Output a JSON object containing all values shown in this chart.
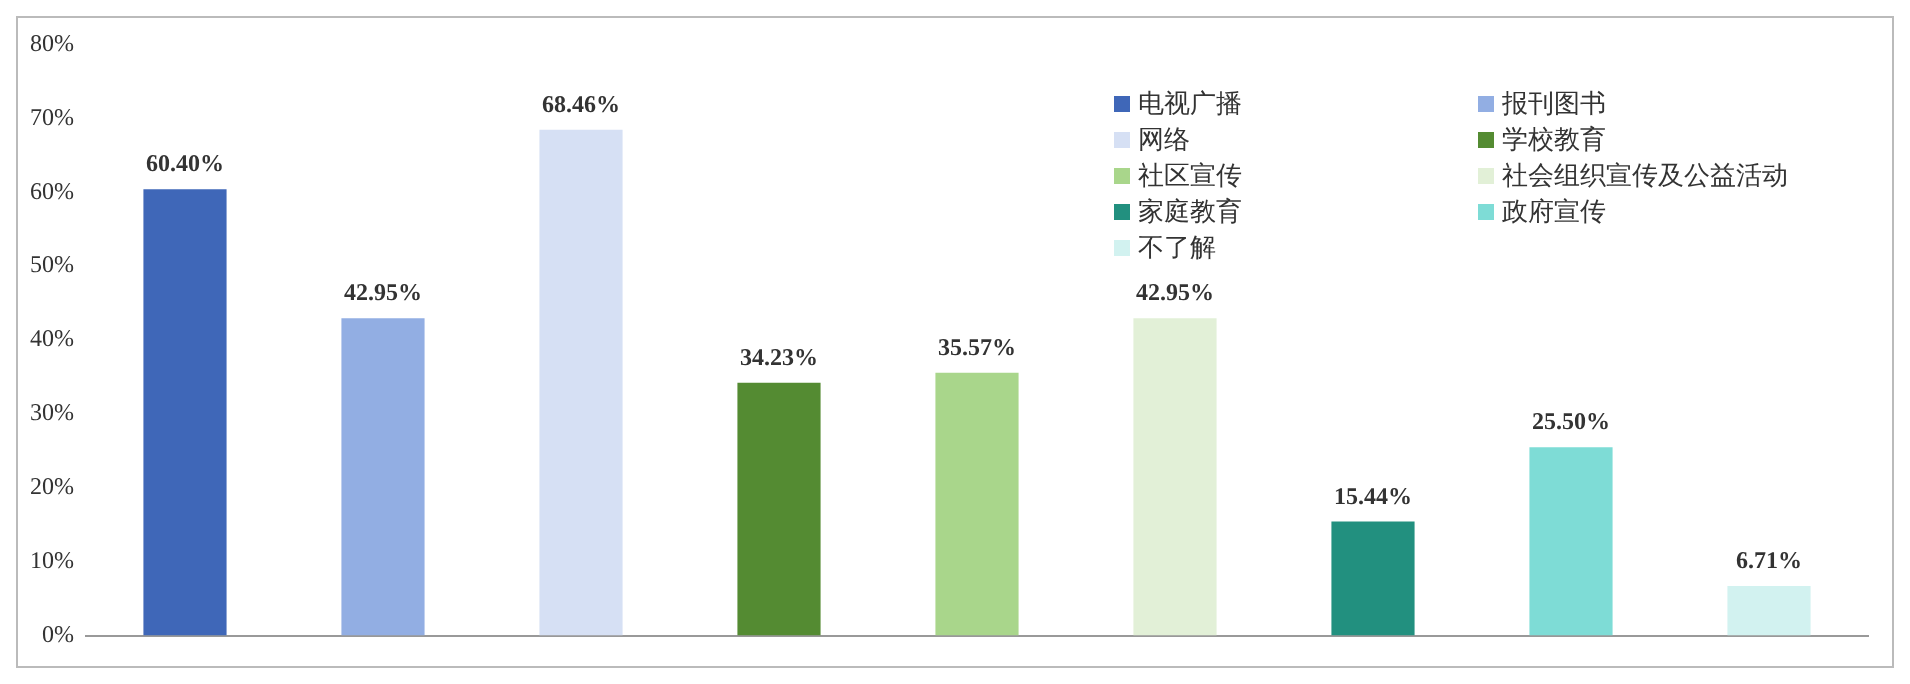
{
  "chart_data": {
    "type": "bar",
    "categories": [
      null,
      null,
      null,
      null,
      null,
      null,
      null,
      null,
      null
    ],
    "series": [
      {
        "name": "电视广播",
        "color": "#3f67b8",
        "values": [
          60.4,
          null,
          null,
          null,
          null,
          null,
          null,
          null,
          null
        ],
        "value_labels": [
          "60.40%",
          null,
          null,
          null,
          null,
          null,
          null,
          null,
          null
        ]
      },
      {
        "name": "报刊图书",
        "color": "#92aee3",
        "values": [
          null,
          42.95,
          null,
          null,
          null,
          null,
          null,
          null,
          null
        ],
        "value_labels": [
          null,
          "42.95%",
          null,
          null,
          null,
          null,
          null,
          null,
          null
        ]
      },
      {
        "name": "网络",
        "color": "#d6e0f4",
        "values": [
          null,
          null,
          68.46,
          null,
          null,
          null,
          null,
          null,
          null
        ],
        "value_labels": [
          null,
          null,
          "68.46%",
          null,
          null,
          null,
          null,
          null,
          null
        ]
      },
      {
        "name": "学校教育",
        "color": "#548b32",
        "values": [
          null,
          null,
          null,
          34.23,
          null,
          null,
          null,
          null,
          null
        ],
        "value_labels": [
          null,
          null,
          null,
          "34.23%",
          null,
          null,
          null,
          null,
          null
        ]
      },
      {
        "name": "社区宣传",
        "color": "#a9d68b",
        "values": [
          null,
          null,
          null,
          null,
          35.57,
          null,
          null,
          null,
          null
        ],
        "value_labels": [
          null,
          null,
          null,
          null,
          "35.57%",
          null,
          null,
          null,
          null
        ]
      },
      {
        "name": "社会组织宣传及公益活动",
        "color": "#e2f0d7",
        "values": [
          null,
          null,
          null,
          null,
          null,
          42.95,
          null,
          null,
          null
        ],
        "value_labels": [
          null,
          null,
          null,
          null,
          null,
          "42.95%",
          null,
          null,
          null
        ]
      },
      {
        "name": "家庭教育",
        "color": "#22907f",
        "values": [
          null,
          null,
          null,
          null,
          null,
          null,
          15.44,
          null,
          null
        ],
        "value_labels": [
          null,
          null,
          null,
          null,
          null,
          null,
          "15.44%",
          null,
          null
        ]
      },
      {
        "name": "政府宣传",
        "color": "#7edcd6",
        "values": [
          null,
          null,
          null,
          null,
          null,
          null,
          null,
          25.5,
          null
        ],
        "value_labels": [
          null,
          null,
          null,
          null,
          null,
          null,
          null,
          "25.50%",
          null
        ]
      },
      {
        "name": "不了解",
        "color": "#d2f2f0",
        "values": [
          null,
          null,
          null,
          null,
          null,
          null,
          null,
          null,
          6.71
        ],
        "value_labels": [
          null,
          null,
          null,
          null,
          null,
          null,
          null,
          null,
          "6.71%"
        ]
      }
    ],
    "ylim": [
      0,
      80
    ],
    "yticks": [
      {
        "value": 0,
        "label": "0%"
      },
      {
        "value": 10,
        "label": "10%"
      },
      {
        "value": 20,
        "label": "20%"
      },
      {
        "value": 30,
        "label": "30%"
      },
      {
        "value": 40,
        "label": "40%"
      },
      {
        "value": 50,
        "label": "50%"
      },
      {
        "value": 60,
        "label": "60%"
      },
      {
        "value": 70,
        "label": "70%"
      },
      {
        "value": 80,
        "label": "80%"
      }
    ],
    "tick_labels": "y",
    "legend": "top right",
    "grid": false
  }
}
